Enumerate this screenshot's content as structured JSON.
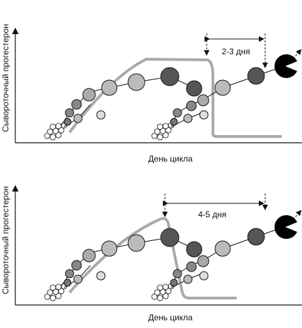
{
  "panels": [
    {
      "y_label": "Сывороточный прогестерон",
      "x_label": "День цикла",
      "interval": "2-3 дня"
    },
    {
      "y_label": "Сывороточный прогестерон",
      "x_label": "День цикла",
      "interval": "4-5 дня"
    }
  ]
}
